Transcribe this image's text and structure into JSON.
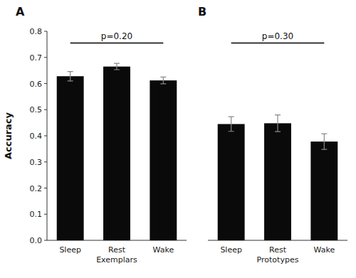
{
  "chart_data": [
    {
      "type": "bar",
      "title": "A",
      "y_label": "Accuracy",
      "categories": [
        "Sleep",
        "Rest\nExemplars",
        "Wake"
      ],
      "values": [
        0.628,
        0.665,
        0.612
      ],
      "errors": [
        0.018,
        0.012,
        0.013
      ],
      "color": "#0a0a0a",
      "ylim": [
        0.0,
        0.8
      ],
      "yticks": [
        {
          "value": 0,
          "label": "0.0"
        },
        0.1,
        0.2,
        0.3,
        0.4,
        0.5,
        0.6,
        0.7,
        0.8
      ],
      "grid": false,
      "annotations": [
        {
          "text": "p=0.20",
          "y": 0.755,
          "x": [
            "Sleep",
            "Wake"
          ]
        }
      ]
    },
    {
      "type": "bar",
      "title": "B",
      "categories": [
        "Sleep",
        "Rest\nPrototypes",
        "Wake"
      ],
      "values": [
        0.445,
        0.448,
        0.378
      ],
      "errors": [
        0.028,
        0.032,
        0.03
      ],
      "color": "#0a0a0a",
      "ylim": [
        0.0,
        0.8
      ],
      "tick_labels": "x",
      "grid": false,
      "annotations": [
        {
          "text": "p=0.30",
          "y": 0.755,
          "x": [
            "Sleep",
            "Wake"
          ]
        }
      ]
    }
  ]
}
